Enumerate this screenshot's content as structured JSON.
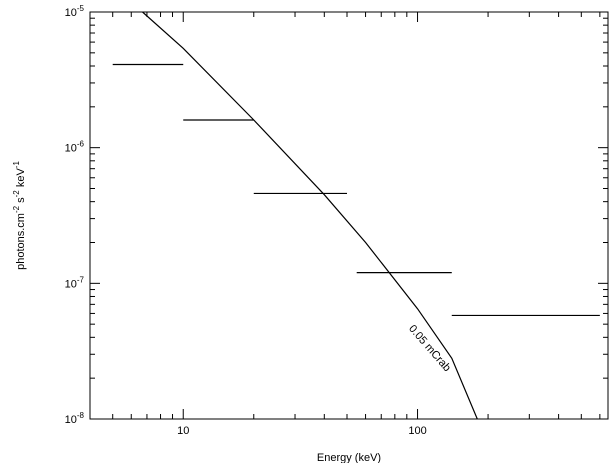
{
  "chart_data": {
    "type": "line",
    "xlabel": "Energy (keV)",
    "ylabel_parts": {
      "base": "photons.cm",
      "exp1": "-2",
      "mid1": " s",
      "exp2": "-2",
      "mid2": " keV",
      "exp3": "-1"
    },
    "x_scale": "log",
    "y_scale": "log",
    "xlim": [
      4,
      650
    ],
    "ylim": [
      1e-08,
      1e-05
    ],
    "x_ticks": [
      {
        "value": 10,
        "label": "10"
      },
      {
        "value": 100,
        "label": "100"
      }
    ],
    "y_ticks": [
      {
        "value": 1e-08,
        "base": "10",
        "exp": "-8"
      },
      {
        "value": 1e-07,
        "base": "10",
        "exp": "-7"
      },
      {
        "value": 1e-06,
        "base": "10",
        "exp": "-6"
      },
      {
        "value": 1e-05,
        "base": "10",
        "exp": "-5"
      }
    ],
    "series": [
      {
        "name": "0.05 mCrab",
        "kind": "curve",
        "x": [
          6.7,
          10,
          20,
          40,
          60,
          100,
          140,
          180
        ],
        "y": [
          1e-05,
          5.4e-06,
          1.6e-06,
          4.5e-07,
          2e-07,
          6.5e-08,
          2.8e-08,
          1e-08
        ]
      },
      {
        "kind": "horizontal-segments",
        "segments": [
          {
            "x0": 5,
            "x1": 10,
            "y": 4.1e-06
          },
          {
            "x0": 10,
            "x1": 20,
            "y": 1.6e-06
          },
          {
            "x0": 20,
            "x1": 50,
            "y": 4.6e-07
          },
          {
            "x0": 55,
            "x1": 140,
            "y": 1.2e-07
          },
          {
            "x0": 140,
            "x1": 600,
            "y": 5.8e-08
          }
        ]
      }
    ],
    "annotations": [
      {
        "text": "0.05 mCrab",
        "x": 110,
        "y": 3.2e-08
      }
    ],
    "grid": false,
    "legend": "none"
  },
  "colors": {
    "background": "#ffffff",
    "ink": "#000000"
  }
}
